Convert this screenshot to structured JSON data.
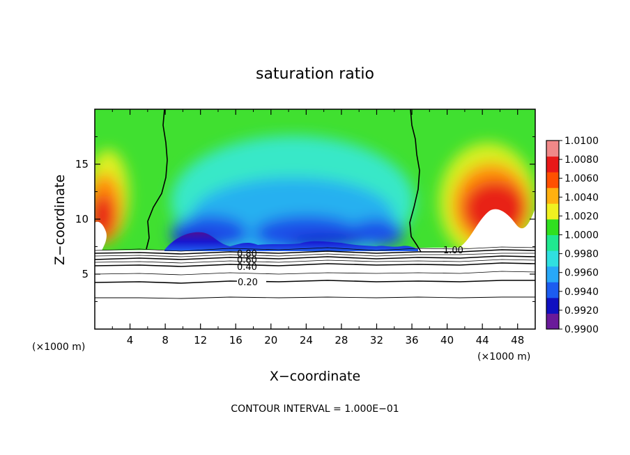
{
  "chart_data": {
    "type": "heatmap",
    "title": "saturation ratio",
    "xlabel": "X−coordinate",
    "ylabel": "Z−coordinate",
    "x_unit_left": "(×1000 m)",
    "x_unit_right": "(×1000 m)",
    "xlim": [
      0,
      50
    ],
    "ylim": [
      0,
      20
    ],
    "x_ticks": [
      4,
      8,
      12,
      16,
      20,
      24,
      28,
      32,
      36,
      40,
      44,
      48
    ],
    "y_ticks": [
      5,
      10,
      15
    ],
    "colorbar": {
      "levels": [
        0.99,
        0.992,
        0.994,
        0.996,
        0.998,
        1.0,
        1.002,
        1.004,
        1.006,
        1.008,
        1.01
      ],
      "labels": [
        "0.9900",
        "0.9920",
        "0.9940",
        "0.9960",
        "0.9980",
        "1.0000",
        "1.0020",
        "1.0040",
        "1.0060",
        "1.0080",
        "1.0100"
      ]
    },
    "contour_labels": [
      "0.80",
      "0.60",
      "0.40",
      "0.20",
      "1.00"
    ],
    "footer": "CONTOUR INTERVAL = 1.000E−01"
  },
  "colors": {
    "background": "#ffffff",
    "color_scale": [
      "#6a1a9a",
      "#1010c0",
      "#1c5cf0",
      "#28a8f8",
      "#30e0e0",
      "#20e890",
      "#30e020",
      "#f0f020",
      "#ffb010",
      "#ff5000",
      "#e81818",
      "#f08888"
    ]
  }
}
